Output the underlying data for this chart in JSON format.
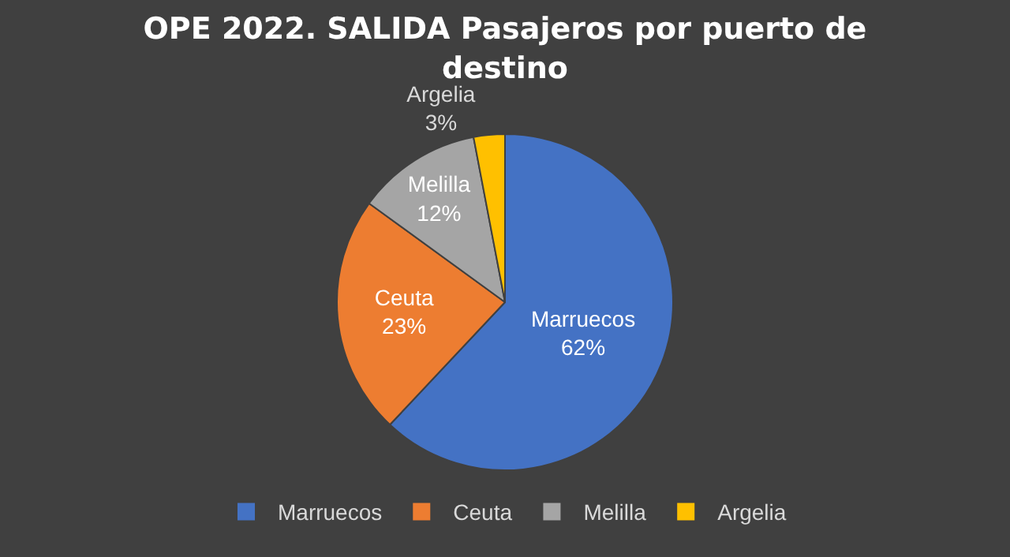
{
  "chart_data": {
    "type": "pie",
    "title": "OPE 2022. SALIDA Pasajeros por puerto de destino",
    "categories": [
      "Marruecos",
      "Ceuta",
      "Melilla",
      "Argelia"
    ],
    "values": [
      62,
      23,
      12,
      3
    ],
    "value_labels": [
      "62%",
      "23%",
      "12%",
      "3%"
    ],
    "colors": [
      "#4472c4",
      "#ed7d31",
      "#a5a5a5",
      "#ffc000"
    ],
    "legend": "bottom"
  }
}
